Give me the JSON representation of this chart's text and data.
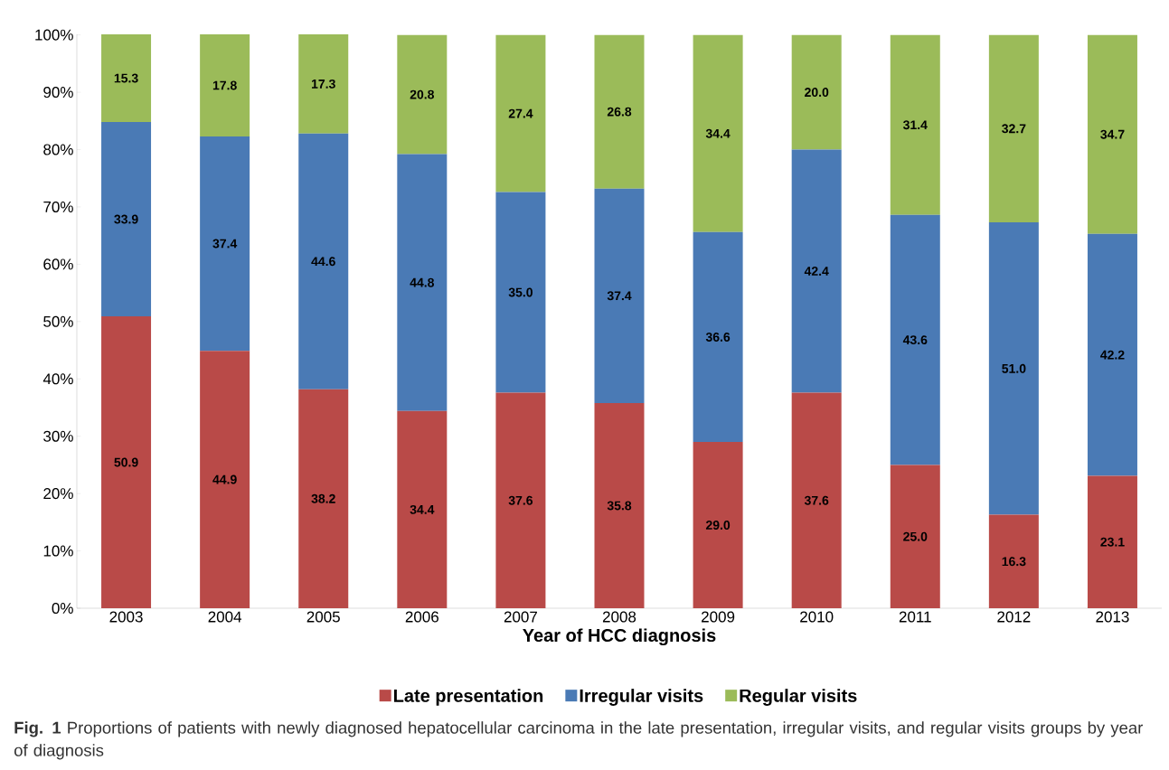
{
  "chart_data": {
    "type": "bar",
    "stacked": true,
    "xlabel": "Year of HCC diagnosis",
    "categories": [
      "2003",
      "2004",
      "2005",
      "2006",
      "2007",
      "2008",
      "2009",
      "2010",
      "2011",
      "2012",
      "2013"
    ],
    "series": [
      {
        "name": "Late presentation",
        "color": "#b94a48",
        "values": [
          50.9,
          44.9,
          38.2,
          34.4,
          37.6,
          35.8,
          29.0,
          37.6,
          25.0,
          16.3,
          23.1
        ],
        "value_labels": [
          "50.9",
          "44.9",
          "38.2",
          "34.4",
          "37.6",
          "35.8",
          "29.0",
          "37.6",
          "25.0",
          "16.3",
          "23.1"
        ]
      },
      {
        "name": "Irregular visits",
        "color": "#4a7ab5",
        "values": [
          33.9,
          37.4,
          44.6,
          44.8,
          35.0,
          37.4,
          36.6,
          42.4,
          43.6,
          51.0,
          42.2
        ],
        "value_labels": [
          "33.9",
          "37.4",
          "44.6",
          "44.8",
          "35.0",
          "37.4",
          "36.6",
          "42.4",
          "43.6",
          "51.0",
          "42.2"
        ]
      },
      {
        "name": "Regular visits",
        "color": "#9bbb59",
        "values": [
          15.3,
          17.8,
          17.3,
          20.8,
          27.4,
          26.8,
          34.4,
          20.0,
          31.4,
          32.7,
          34.7
        ],
        "value_labels": [
          "15.3",
          "17.8",
          "17.3",
          "20.8",
          "27.4",
          "26.8",
          "34.4",
          "20.0",
          "31.4",
          "32.7",
          "34.7"
        ]
      }
    ],
    "ylim": [
      0,
      100.1
    ],
    "yticks": [
      {
        "value": 0,
        "label": "0%"
      },
      {
        "value": 10,
        "label": "10%"
      },
      {
        "value": 20,
        "label": "20%"
      },
      {
        "value": 30,
        "label": "30%"
      },
      {
        "value": 40,
        "label": "40%"
      },
      {
        "value": 50,
        "label": "50%"
      },
      {
        "value": 60,
        "label": "60%"
      },
      {
        "value": 70,
        "label": "70%"
      },
      {
        "value": 80,
        "label": "80%"
      },
      {
        "value": 90,
        "label": "90%"
      },
      {
        "value": 100,
        "label": "100%"
      }
    ],
    "legend": "bottom",
    "annotations": [
      "**Fig. 1** Proportions of patients with newly diagnosed hepatocellular carcinoma in the late presentation, irregular visits, and regular visits groups by year of diagnosis"
    ]
  }
}
